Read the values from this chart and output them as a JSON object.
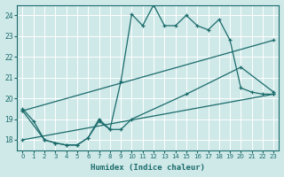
{
  "xlabel": "Humidex (Indice chaleur)",
  "ylabel": "",
  "background_color": "#cfe8e8",
  "grid_color": "#b8d8d8",
  "line_color": "#1a6b6b",
  "xlim": [
    -0.5,
    23.5
  ],
  "ylim": [
    17.5,
    24.5
  ],
  "xticks": [
    0,
    1,
    2,
    3,
    4,
    5,
    6,
    7,
    8,
    9,
    10,
    11,
    12,
    13,
    14,
    15,
    16,
    17,
    18,
    19,
    20,
    21,
    22,
    23
  ],
  "yticks": [
    18,
    19,
    20,
    21,
    22,
    23,
    24
  ],
  "line1_x": [
    0,
    1,
    2,
    3,
    4,
    5,
    6,
    7,
    8,
    9,
    10,
    11,
    12,
    13,
    14,
    15,
    16,
    17,
    18,
    19,
    20,
    21,
    22,
    23
  ],
  "line1_y": [
    19.5,
    18.9,
    18.0,
    17.85,
    17.75,
    17.75,
    18.1,
    18.9,
    18.5,
    20.8,
    24.05,
    23.5,
    24.5,
    23.5,
    23.5,
    24.0,
    23.5,
    23.3,
    23.8,
    22.8,
    20.5,
    20.3,
    20.2,
    20.2
  ],
  "line2_x": [
    0,
    2,
    3,
    4,
    5,
    6,
    7,
    8,
    9,
    10,
    15,
    20,
    23
  ],
  "line2_y": [
    19.4,
    18.0,
    17.85,
    17.75,
    17.75,
    18.1,
    19.0,
    18.5,
    18.5,
    19.0,
    20.2,
    21.5,
    20.3
  ],
  "line3_x": [
    0,
    23
  ],
  "line3_y": [
    18.0,
    20.2
  ],
  "line4_x": [
    0,
    23
  ],
  "line4_y": [
    19.4,
    22.8
  ]
}
